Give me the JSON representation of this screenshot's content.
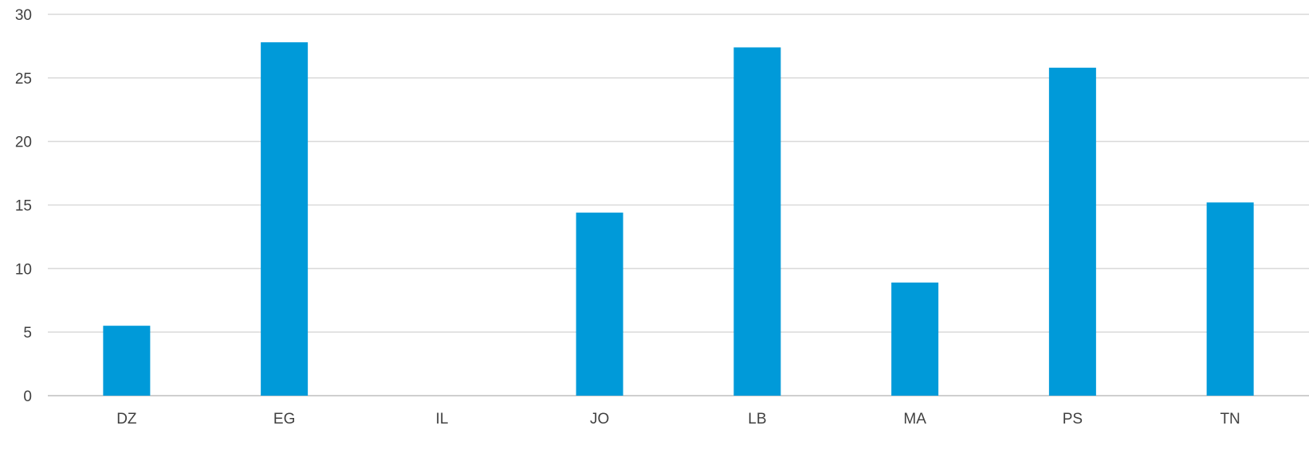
{
  "chart_data": {
    "type": "bar",
    "title": "",
    "xlabel": "",
    "ylabel": "",
    "categories": [
      "DZ",
      "EG",
      "IL",
      "JO",
      "LB",
      "MA",
      "PS",
      "TN"
    ],
    "values": [
      5.5,
      27.8,
      0,
      14.4,
      27.4,
      8.9,
      25.8,
      15.2
    ],
    "ylim": [
      0,
      30
    ],
    "yticks": [
      "0",
      "5",
      "10",
      "15",
      "20",
      "25",
      "30"
    ],
    "grid": true,
    "legend": "none",
    "bar_color": "#009ad9"
  }
}
